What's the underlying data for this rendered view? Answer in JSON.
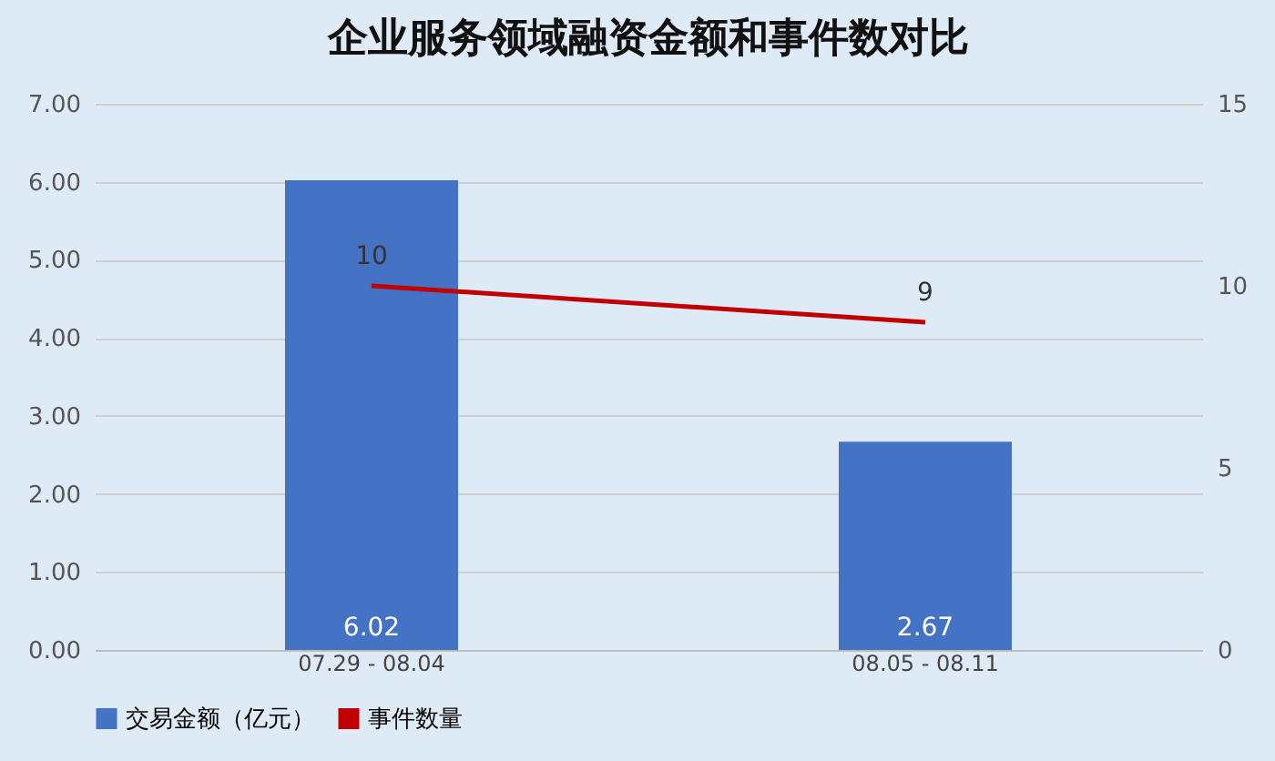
{
  "chart_data": {
    "type": "bar",
    "title": "企业服务领域融资金额和事件数对比",
    "categories": [
      "07.29 - 08.04",
      "08.05 - 08.11"
    ],
    "series": [
      {
        "name": "交易金额（亿元）",
        "color": "#4472c4",
        "values": [
          6.02,
          2.67
        ]
      },
      {
        "name": "事件数量",
        "type": "line",
        "axis": "y2",
        "color": "#c00000",
        "values": [
          10,
          9
        ]
      }
    ],
    "ylim": [
      0,
      7
    ],
    "yticks": [
      {
        "value": 0,
        "label": "0.00"
      },
      {
        "value": 1,
        "label": "1.00"
      },
      {
        "value": 2,
        "label": "2.00"
      },
      {
        "value": 3,
        "label": "3.00"
      },
      {
        "value": 4,
        "label": "4.00"
      },
      {
        "value": 5,
        "label": "5.00"
      },
      {
        "value": 6,
        "label": "6.00"
      },
      {
        "value": 7,
        "label": "7.00"
      }
    ],
    "y2lim": [
      0,
      15
    ],
    "y2ticks": [
      0,
      5,
      10,
      15
    ],
    "grid": "y",
    "legend": "bottom",
    "data_labels": true
  }
}
